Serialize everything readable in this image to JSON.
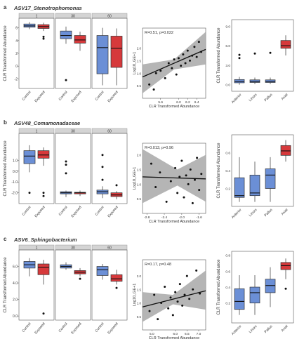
{
  "figure": {
    "panels": [
      {
        "letter": "a",
        "title": "ASV17_Stenotrophomonas",
        "box_ylabel": "CLR Transformed Abundance",
        "box_facets": [
          "1",
          "30",
          "60"
        ],
        "box_categories": [
          "Control",
          "Exposed"
        ],
        "box_ylim": [
          -3.5,
          7.5
        ],
        "box_yticks": [
          "6",
          "4",
          "2",
          "0",
          "-2"
        ],
        "box_data": [
          [
            {
              "min": 5.8,
              "q1": 6.1,
              "median": 6.3,
              "q3": 6.6,
              "max": 6.9,
              "outliers": []
            },
            {
              "min": 5.5,
              "q1": 5.9,
              "median": 6.2,
              "q3": 6.5,
              "max": 6.8,
              "outliers": [
                4.6,
                4.3
              ]
            }
          ],
          [
            {
              "min": 3.5,
              "q1": 4.3,
              "median": 4.8,
              "q3": 5.5,
              "max": 6.2,
              "outliers": [
                -2.2
              ]
            },
            {
              "min": 2.4,
              "q1": 3.6,
              "median": 4.1,
              "q3": 4.8,
              "max": 5.4,
              "outliers": []
            }
          ],
          [
            {
              "min": -3.0,
              "q1": -1.2,
              "median": 2.9,
              "q3": 4.8,
              "max": 6.0,
              "outliers": []
            },
            {
              "min": -3.0,
              "q1": -0.2,
              "median": 2.8,
              "q3": 4.7,
              "max": 5.9,
              "outliers": []
            }
          ]
        ],
        "scatter_annotation": "R=0.51, p=0.022",
        "scatter_xlabel": "CLR Transformed Abundance",
        "scatter_ylabel": "Log10_GE+1",
        "scatter_xticks": [
          "5.6",
          "6.0",
          "6.2",
          "6.4"
        ],
        "scatter_xlim": [
          5.2,
          6.6
        ],
        "scatter_ylim": [
          0.0,
          2.8
        ],
        "scatter_yticks": [
          "2.0",
          "1.5",
          "1.0",
          "0.5"
        ],
        "scatter_points": [
          [
            5.35,
            0.55
          ],
          [
            5.45,
            0.35
          ],
          [
            5.5,
            1.0
          ],
          [
            5.6,
            1.1
          ],
          [
            5.7,
            0.8
          ],
          [
            5.78,
            1.4
          ],
          [
            5.85,
            1.2
          ],
          [
            5.9,
            1.55
          ],
          [
            5.95,
            0.95
          ],
          [
            6.0,
            1.6
          ],
          [
            6.05,
            1.3
          ],
          [
            6.1,
            1.75
          ],
          [
            6.15,
            1.4
          ],
          [
            6.2,
            1.9
          ],
          [
            6.25,
            1.5
          ],
          [
            6.3,
            1.7
          ],
          [
            6.35,
            2.05
          ],
          [
            6.4,
            1.65
          ],
          [
            6.45,
            2.25
          ],
          [
            6.5,
            1.85
          ]
        ],
        "fit": {
          "x0": 5.2,
          "y0": 0.85,
          "x1": 6.6,
          "y1": 1.95
        },
        "ci": {
          "upper": [
            [
              5.2,
              1.35
            ],
            [
              5.9,
              1.55
            ],
            [
              6.6,
              2.65
            ]
          ],
          "lower": [
            [
              5.2,
              0.2
            ],
            [
              5.9,
              1.15
            ],
            [
              6.6,
              1.35
            ]
          ]
        },
        "group_ylabel": "CLR Transformed Abundance",
        "group_categories": [
          "Anterior",
          "Linurs",
          "Pallus",
          "Axial"
        ],
        "group_ylim": [
          -1.0,
          10.0
        ],
        "group_yticks": [
          "9.0",
          "6.0",
          "3.0",
          "0.0"
        ],
        "group_box": [
          {
            "min": 0.0,
            "q1": 0.3,
            "median": 0.5,
            "q3": 0.8,
            "max": 1.2,
            "outliers": [
              4.6,
              4.1
            ]
          },
          {
            "min": 0.1,
            "q1": 0.35,
            "median": 0.5,
            "q3": 0.75,
            "max": 1.1,
            "outliers": [
              4.8
            ]
          },
          {
            "min": 0.1,
            "q1": 0.35,
            "median": 0.5,
            "q3": 0.75,
            "max": 1.1,
            "outliers": [
              4.9
            ]
          },
          {
            "min": 4.5,
            "q1": 5.6,
            "median": 6.0,
            "q3": 6.8,
            "max": 7.6,
            "outliers": []
          }
        ]
      },
      {
        "letter": "b",
        "title": "ASV48_Comamonadaceae",
        "box_ylabel": "CLR Transformed Abundance",
        "box_facets": [
          "1",
          "30",
          "60"
        ],
        "box_categories": [
          "Control",
          "Exposed"
        ],
        "box_ylim": [
          -3.0,
          3.5
        ],
        "box_yticks": [
          "1.0",
          "0.0",
          "-1.0",
          "-2.0"
        ],
        "box_data": [
          [
            {
              "min": -0.1,
              "q1": 0.7,
              "median": 1.4,
              "q3": 1.9,
              "max": 2.4,
              "outliers": [
                -2.0
              ]
            },
            {
              "min": 0.5,
              "q1": 1.2,
              "median": 1.5,
              "q3": 1.9,
              "max": 2.2,
              "outliers": [
                -2.0,
                -2.3
              ]
            }
          ],
          [
            {
              "min": -2.4,
              "q1": -2.1,
              "median": -2.0,
              "q3": -1.9,
              "max": -1.8,
              "outliers": [
                0.9,
                0.6,
                -0.2
              ]
            },
            {
              "min": -2.3,
              "q1": -2.1,
              "median": -2.0,
              "q3": -1.95,
              "max": -1.8,
              "outliers": []
            }
          ],
          [
            {
              "min": -2.5,
              "q1": -2.1,
              "median": -1.9,
              "q3": -1.75,
              "max": -1.4,
              "outliers": [
                -0.8,
                0.4,
                1.5
              ]
            },
            {
              "min": -2.6,
              "q1": -2.35,
              "median": -2.2,
              "q3": -2.0,
              "max": -1.85,
              "outliers": [
                -1.3
              ]
            }
          ]
        ],
        "scatter_annotation": "R=0.013, p=0.96",
        "scatter_xlabel": "CLR Transformed Abundance",
        "scatter_ylabel": "Log10_GE+1",
        "scatter_xticks": [
          "-2.8",
          "-2.4",
          "-2.0",
          "-1.6"
        ],
        "scatter_xlim": [
          -2.9,
          -1.45
        ],
        "scatter_ylim": [
          0.0,
          2.4
        ],
        "scatter_yticks": [
          "2.0",
          "1.5",
          "1.0",
          "0.5"
        ],
        "scatter_points": [
          [
            -2.7,
            1.7
          ],
          [
            -2.6,
            0.9
          ],
          [
            -2.5,
            1.4
          ],
          [
            -2.35,
            0.4
          ],
          [
            -2.25,
            1.1
          ],
          [
            -2.15,
            1.55
          ],
          [
            -2.1,
            0.7
          ],
          [
            -2.05,
            1.25
          ],
          [
            -2.0,
            1.8
          ],
          [
            -1.95,
            0.55
          ],
          [
            -1.9,
            1.3
          ],
          [
            -1.85,
            1.0
          ],
          [
            -1.8,
            1.5
          ],
          [
            -1.75,
            0.35
          ],
          [
            -1.7,
            1.15
          ],
          [
            -1.65,
            1.9
          ],
          [
            -1.6,
            0.8
          ],
          [
            -1.55,
            1.35
          ]
        ],
        "fit": {
          "x0": -2.9,
          "y0": 1.25,
          "x1": -1.45,
          "y1": 1.18
        },
        "ci": {
          "upper": [
            [
              -2.9,
              2.2
            ],
            [
              -2.1,
              1.5
            ],
            [
              -1.45,
              2.0
            ]
          ],
          "lower": [
            [
              -2.9,
              0.35
            ],
            [
              -2.1,
              0.95
            ],
            [
              -1.45,
              0.4
            ]
          ]
        },
        "group_ylabel": "CLR Transformed Abundance",
        "group_categories": [
          "Anterior",
          "Linurs",
          "Pallus",
          "Axial"
        ],
        "group_ylim": [
          0.0,
          0.8
        ],
        "group_yticks": [
          "0.6",
          "0.4",
          "0.2"
        ],
        "group_box": [
          {
            "min": 0.05,
            "q1": 0.1,
            "median": 0.12,
            "q3": 0.32,
            "max": 0.55,
            "outliers": []
          },
          {
            "min": 0.05,
            "q1": 0.12,
            "median": 0.15,
            "q3": 0.35,
            "max": 0.5,
            "outliers": []
          },
          {
            "min": 0.05,
            "q1": 0.2,
            "median": 0.35,
            "q3": 0.42,
            "max": 0.55,
            "outliers": []
          },
          {
            "min": 0.5,
            "q1": 0.57,
            "median": 0.62,
            "q3": 0.68,
            "max": 0.74,
            "outliers": []
          }
        ]
      },
      {
        "letter": "c",
        "title": "ASV6_Sphingobacterium",
        "box_ylabel": "CLR Transformed Abundance",
        "box_facets": [
          "1",
          "30",
          "60"
        ],
        "box_categories": [
          "Control",
          "Exposed"
        ],
        "box_ylim": [
          -0.5,
          8.0
        ],
        "box_yticks": [
          "6.0",
          "4.0",
          "2.0",
          "0.0"
        ],
        "box_data": [
          [
            {
              "min": 4.8,
              "q1": 5.8,
              "median": 6.2,
              "q3": 6.6,
              "max": 7.0,
              "outliers": []
            },
            {
              "min": 3.8,
              "q1": 5.0,
              "median": 5.9,
              "q3": 6.3,
              "max": 6.8,
              "outliers": [
                0.3
              ]
            }
          ],
          [
            {
              "min": 5.6,
              "q1": 5.8,
              "median": 6.0,
              "q3": 6.2,
              "max": 6.5,
              "outliers": []
            },
            {
              "min": 4.8,
              "q1": 5.1,
              "median": 5.3,
              "q3": 5.5,
              "max": 5.8,
              "outliers": [
                4.5
              ]
            }
          ],
          [
            {
              "min": 4.4,
              "q1": 4.9,
              "median": 5.6,
              "q3": 6.0,
              "max": 6.3,
              "outliers": []
            },
            {
              "min": 3.8,
              "q1": 4.2,
              "median": 4.5,
              "q3": 5.0,
              "max": 5.6,
              "outliers": [
                3.4
              ]
            }
          ]
        ],
        "scatter_annotation": "R=0.17, p=0.48",
        "scatter_xlabel": "CLR Transformed Abundance",
        "scatter_ylabel": "Log10_GE+1",
        "scatter_xticks": [
          "5.0",
          "6.0",
          "6.5",
          "7.0"
        ],
        "scatter_xlim": [
          4.6,
          7.3
        ],
        "scatter_ylim": [
          0.0,
          2.6
        ],
        "scatter_yticks": [
          "2.0",
          "1.5",
          "1.0",
          "0.5"
        ],
        "scatter_points": [
          [
            4.9,
            0.7
          ],
          [
            5.1,
            1.3
          ],
          [
            5.25,
            0.4
          ],
          [
            5.4,
            1.0
          ],
          [
            5.55,
            1.6
          ],
          [
            5.7,
            0.8
          ],
          [
            5.8,
            1.2
          ],
          [
            5.9,
            0.55
          ],
          [
            6.0,
            1.4
          ],
          [
            6.1,
            1.05
          ],
          [
            6.2,
            1.7
          ],
          [
            6.3,
            0.9
          ],
          [
            6.4,
            1.3
          ],
          [
            6.5,
            2.0
          ],
          [
            6.6,
            1.15
          ],
          [
            6.75,
            1.5
          ],
          [
            6.9,
            2.2
          ],
          [
            7.05,
            1.35
          ]
        ],
        "fit": {
          "x0": 4.6,
          "y0": 0.85,
          "x1": 7.3,
          "y1": 1.45
        },
        "ci": {
          "upper": [
            [
              4.6,
              1.4
            ],
            [
              5.9,
              1.3
            ],
            [
              7.3,
              2.2
            ]
          ],
          "lower": [
            [
              4.6,
              0.3
            ],
            [
              5.9,
              0.95
            ],
            [
              7.3,
              0.75
            ]
          ]
        },
        "group_ylabel": "CLR Transformed Abundance",
        "group_categories": [
          "Anterior",
          "Linurs",
          "Pallus",
          "Axial"
        ],
        "group_ylim": [
          -0.05,
          0.85
        ],
        "group_yticks": [
          "0.8",
          "0.6",
          "0.4",
          "0.2"
        ],
        "group_box": [
          {
            "min": 0.05,
            "q1": 0.12,
            "median": 0.22,
            "q3": 0.38,
            "max": 0.55,
            "outliers": []
          },
          {
            "min": 0.05,
            "q1": 0.2,
            "median": 0.33,
            "q3": 0.4,
            "max": 0.55,
            "outliers": []
          },
          {
            "min": 0.15,
            "q1": 0.33,
            "median": 0.42,
            "q3": 0.5,
            "max": 0.65,
            "outliers": []
          },
          {
            "min": 0.5,
            "q1": 0.62,
            "median": 0.67,
            "q3": 0.71,
            "max": 0.76,
            "outliers": [
              0.38
            ]
          }
        ]
      }
    ]
  },
  "colors": {
    "control": "#6b8fd6",
    "exposed": "#d6393b",
    "ci": "#a8a8a8",
    "strip": "#d4d4d4"
  },
  "chart_data": [
    {
      "type": "box",
      "panel": "a",
      "title": "ASV17_Stenotrophomonas",
      "ylabel": "CLR Transformed Abundance",
      "facets": [
        "1",
        "30",
        "60"
      ],
      "categories": [
        "Control",
        "Exposed"
      ],
      "series": [
        {
          "name": "Control",
          "medians": [
            6.3,
            4.8,
            2.9
          ]
        },
        {
          "name": "Exposed",
          "medians": [
            6.2,
            4.1,
            2.8
          ]
        }
      ]
    },
    {
      "type": "scatter",
      "panel": "a",
      "annotation": "R=0.51, p=0.022",
      "xlabel": "CLR Transformed Abundance",
      "ylabel": "Log10_GE+1",
      "xlim": [
        5.2,
        6.6
      ],
      "ylim": [
        0.0,
        2.8
      ]
    },
    {
      "type": "box",
      "panel": "a",
      "categories": [
        "Anterior",
        "Linurs",
        "Pallus",
        "Axial"
      ],
      "medians": [
        0.5,
        0.5,
        0.5,
        6.0
      ],
      "ylim": [
        -1.0,
        10.0
      ]
    },
    {
      "type": "box",
      "panel": "b",
      "title": "ASV48_Comamonadaceae",
      "facets": [
        "1",
        "30",
        "60"
      ],
      "categories": [
        "Control",
        "Exposed"
      ],
      "series": [
        {
          "name": "Control",
          "medians": [
            1.4,
            -2.0,
            -1.9
          ]
        },
        {
          "name": "Exposed",
          "medians": [
            1.5,
            -2.0,
            -2.2
          ]
        }
      ]
    },
    {
      "type": "scatter",
      "panel": "b",
      "annotation": "R=0.013, p=0.96",
      "xlim": [
        -2.9,
        -1.45
      ],
      "ylim": [
        0.0,
        2.4
      ]
    },
    {
      "type": "box",
      "panel": "b",
      "categories": [
        "Anterior",
        "Linurs",
        "Pallus",
        "Axial"
      ],
      "medians": [
        0.12,
        0.15,
        0.35,
        0.62
      ],
      "ylim": [
        0.0,
        0.8
      ]
    },
    {
      "type": "box",
      "panel": "c",
      "title": "ASV6_Sphingobacterium",
      "facets": [
        "1",
        "30",
        "60"
      ],
      "categories": [
        "Control",
        "Exposed"
      ],
      "series": [
        {
          "name": "Control",
          "medians": [
            6.2,
            6.0,
            5.6
          ]
        },
        {
          "name": "Exposed",
          "medians": [
            5.9,
            5.3,
            4.5
          ]
        }
      ]
    },
    {
      "type": "scatter",
      "panel": "c",
      "annotation": "R=0.17, p=0.48",
      "xlim": [
        4.6,
        7.3
      ],
      "ylim": [
        0.0,
        2.6
      ]
    },
    {
      "type": "box",
      "panel": "c",
      "categories": [
        "Anterior",
        "Linurs",
        "Pallus",
        "Axial"
      ],
      "medians": [
        0.22,
        0.33,
        0.42,
        0.67
      ],
      "ylim": [
        -0.05,
        0.85
      ]
    }
  ]
}
